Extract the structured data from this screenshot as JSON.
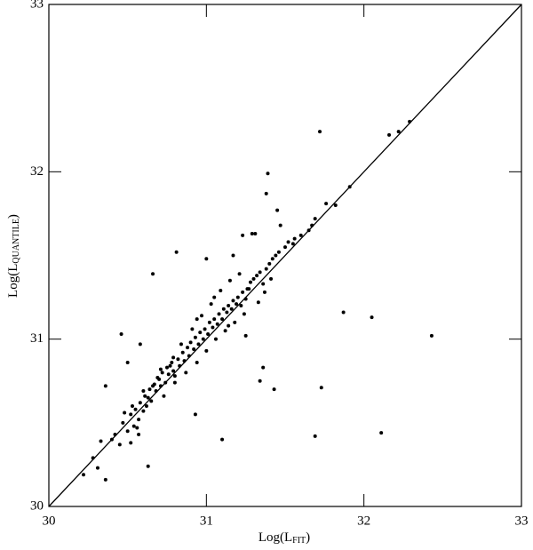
{
  "chart_data": {
    "type": "scatter",
    "xlabel": {
      "text": "Log(L",
      "sub": "FIT",
      "end": ")"
    },
    "ylabel": {
      "text": "Log(L",
      "sub": "QUANTILE",
      "end": ")"
    },
    "xlim": [
      30,
      33
    ],
    "ylim": [
      30,
      33
    ],
    "xticks": [
      30,
      31,
      32,
      33
    ],
    "yticks": [
      30,
      31,
      32,
      33
    ],
    "diagonal": [
      30,
      33
    ],
    "color": "#000000",
    "x": [
      31.72,
      32.16,
      32.22,
      32.29,
      31.91,
      31.82,
      31.76,
      31.39,
      31.38,
      31.47,
      31.45,
      31.69,
      31.67,
      31.56,
      31.87,
      32.05,
      32.43,
      31.73,
      31.69,
      32.11,
      31.1,
      31.43,
      31.34,
      31.36,
      30.93,
      30.63,
      30.66,
      30.81,
      30.46,
      30.36,
      30.22,
      30.28,
      30.33,
      30.36,
      30.31,
      31.0,
      31.23,
      31.29,
      31.31,
      31.17,
      30.5,
      30.58,
      30.4,
      30.42,
      30.45,
      30.47,
      30.5,
      30.52,
      30.54,
      30.55,
      30.57,
      30.58,
      30.6,
      30.61,
      30.62,
      30.64,
      30.65,
      30.67,
      30.68,
      30.7,
      30.71,
      30.72,
      30.74,
      30.75,
      30.76,
      30.78,
      30.79,
      30.8,
      30.82,
      30.83,
      30.85,
      30.86,
      30.88,
      30.89,
      30.9,
      30.92,
      30.93,
      30.95,
      30.96,
      30.98,
      30.99,
      31.01,
      31.02,
      31.04,
      31.05,
      31.07,
      31.08,
      31.1,
      31.11,
      31.13,
      31.14,
      31.16,
      31.17,
      31.19,
      31.2,
      31.22,
      31.23,
      31.25,
      31.26,
      31.28,
      31.3,
      31.32,
      31.34,
      31.36,
      31.38,
      31.4,
      31.42,
      31.44,
      31.46,
      31.5,
      31.52,
      31.55,
      31.6,
      31.65,
      30.48,
      30.53,
      30.56,
      30.6,
      30.63,
      30.66,
      30.69,
      30.73,
      30.77,
      30.8,
      30.84,
      30.87,
      30.91,
      30.94,
      30.97,
      31.0,
      31.03,
      31.06,
      31.09,
      31.12,
      31.15,
      31.18,
      31.21,
      31.24,
      31.27,
      31.33,
      31.37,
      31.41,
      30.52,
      30.57,
      30.71,
      30.79,
      30.94,
      31.05,
      31.14,
      31.25
    ],
    "y": [
      32.24,
      32.22,
      32.24,
      32.3,
      31.91,
      31.8,
      31.81,
      31.99,
      31.87,
      31.68,
      31.77,
      31.72,
      31.68,
      31.6,
      31.16,
      31.13,
      31.02,
      30.71,
      30.42,
      30.44,
      30.4,
      30.7,
      30.75,
      30.83,
      30.55,
      30.24,
      31.39,
      31.52,
      31.03,
      30.72,
      30.19,
      30.29,
      30.39,
      30.16,
      30.23,
      31.48,
      31.62,
      31.63,
      31.63,
      31.5,
      30.86,
      30.97,
      30.4,
      30.43,
      30.37,
      30.5,
      30.45,
      30.55,
      30.48,
      30.58,
      30.52,
      30.62,
      30.57,
      30.66,
      30.6,
      30.7,
      30.63,
      30.73,
      30.69,
      30.76,
      30.72,
      30.8,
      30.74,
      30.83,
      30.79,
      30.86,
      30.81,
      30.78,
      30.88,
      30.84,
      30.92,
      30.87,
      30.95,
      30.9,
      30.98,
      30.94,
      31.01,
      30.97,
      31.04,
      31.0,
      31.06,
      31.03,
      31.1,
      31.07,
      31.12,
      31.09,
      31.15,
      31.12,
      31.18,
      31.16,
      31.2,
      31.18,
      31.23,
      31.21,
      31.25,
      31.2,
      31.28,
      31.24,
      31.3,
      31.34,
      31.36,
      31.38,
      31.4,
      31.33,
      31.42,
      31.45,
      31.48,
      31.5,
      31.52,
      31.55,
      31.58,
      31.57,
      31.62,
      31.65,
      30.56,
      30.6,
      30.47,
      30.69,
      30.65,
      30.72,
      30.77,
      30.66,
      30.84,
      30.74,
      30.97,
      30.8,
      31.06,
      30.86,
      31.14,
      30.93,
      31.21,
      31.0,
      31.29,
      31.05,
      31.35,
      31.1,
      31.39,
      31.15,
      31.3,
      31.22,
      31.28,
      31.36,
      30.38,
      30.43,
      30.82,
      30.89,
      31.12,
      31.25,
      31.08,
      31.02
    ]
  }
}
